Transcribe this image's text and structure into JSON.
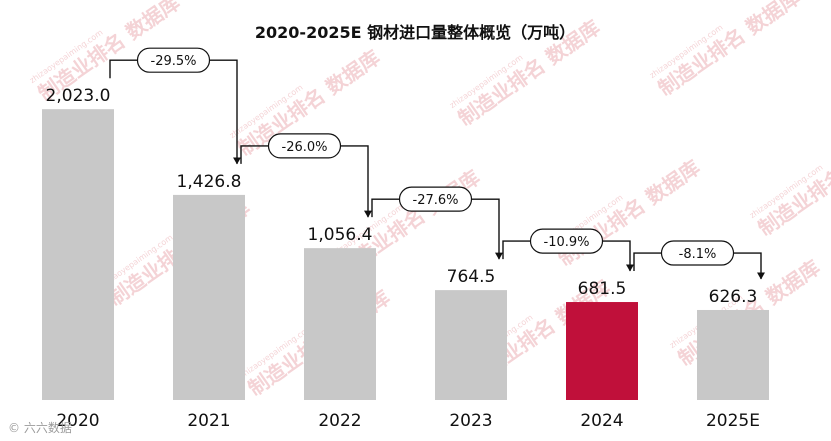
{
  "chart_data": {
    "type": "bar",
    "title": "2020-2025E 钢材进口量整体概览（万吨）",
    "categories": [
      "2020",
      "2021",
      "2022",
      "2023",
      "2024",
      "2025E"
    ],
    "values": [
      2023.0,
      1426.8,
      1056.4,
      764.5,
      681.5,
      626.3
    ],
    "value_labels": [
      "2,023.0",
      "1,426.8",
      "1,056.4",
      "764.5",
      "681.5",
      "626.3"
    ],
    "changes": [
      "-29.5%",
      "-26.0%",
      "-27.6%",
      "-10.9%",
      "-8.1%"
    ],
    "bar_colors": [
      "#c8c8c8",
      "#c8c8c8",
      "#c8c8c8",
      "#c8c8c8",
      "#c0103a",
      "#c8c8c8"
    ],
    "ylim": [
      0,
      2400
    ],
    "grid": false,
    "legend": "none"
  },
  "watermark": {
    "text": "制造业排名 数据库",
    "url": "zhizaoyepaiming.com"
  },
  "credit": "© 六六数据"
}
